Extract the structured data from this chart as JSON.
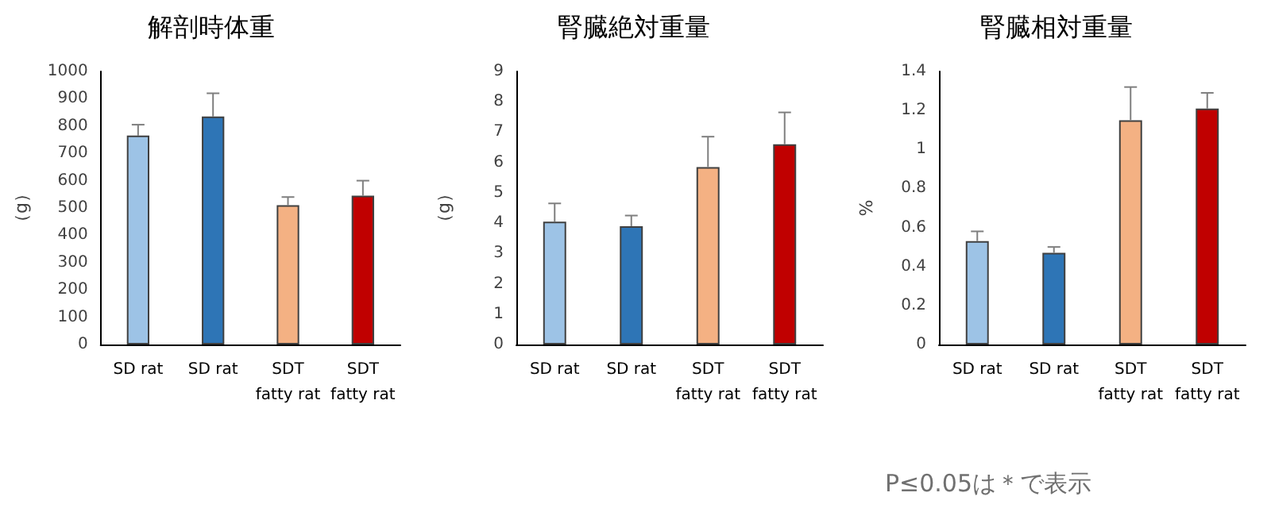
{
  "chart_data": [
    {
      "type": "bar",
      "title": "解剖時体重",
      "ylabel": "（g）",
      "categories": [
        "SD rat",
        "SD rat",
        "SDT\nfatty rat",
        "SDT\nfatty rat"
      ],
      "values": [
        765,
        835,
        510,
        545
      ],
      "errors": [
        [
          765,
          805
        ],
        [
          835,
          920
        ],
        [
          510,
          540
        ],
        [
          545,
          600
        ]
      ],
      "colors": [
        "#9dc3e6",
        "#2e75b6",
        "#f4b183",
        "#c00000"
      ],
      "ylim": [
        0,
        1000
      ],
      "yticks": [
        0,
        100,
        200,
        300,
        400,
        500,
        600,
        700,
        800,
        900,
        1000
      ],
      "grid": false
    },
    {
      "type": "bar",
      "title": "腎臓絶対重量",
      "ylabel": "（g）",
      "categories": [
        "SD rat",
        "SD rat",
        "SDT\nfatty rat",
        "SDT\nfatty rat"
      ],
      "values": [
        4.05,
        3.9,
        5.85,
        6.6
      ],
      "errors": [
        [
          4.05,
          4.65
        ],
        [
          3.9,
          4.25
        ],
        [
          5.85,
          6.85
        ],
        [
          6.6,
          7.65
        ]
      ],
      "colors": [
        "#9dc3e6",
        "#2e75b6",
        "#f4b183",
        "#c00000"
      ],
      "ylim": [
        0,
        9
      ],
      "yticks": [
        0,
        1,
        2,
        3,
        4,
        5,
        6,
        7,
        8,
        9
      ],
      "grid": false
    },
    {
      "type": "bar",
      "title": "腎臓相対重量",
      "ylabel": "%",
      "categories": [
        "SD rat",
        "SD rat",
        "SDT\nfatty rat",
        "SDT\nfatty rat"
      ],
      "values": [
        0.53,
        0.47,
        1.15,
        1.21
      ],
      "errors": [
        [
          0.53,
          0.58
        ],
        [
          0.47,
          0.5
        ],
        [
          1.15,
          1.32
        ],
        [
          1.21,
          1.29
        ]
      ],
      "colors": [
        "#9dc3e6",
        "#2e75b6",
        "#f4b183",
        "#c00000"
      ],
      "ylim": [
        0,
        1.4
      ],
      "yticks": [
        0,
        0.2,
        0.4,
        0.6,
        0.8,
        1,
        1.2,
        1.4
      ],
      "grid": false,
      "annotations": [
        "P≤0.05は＊で表示"
      ]
    }
  ]
}
